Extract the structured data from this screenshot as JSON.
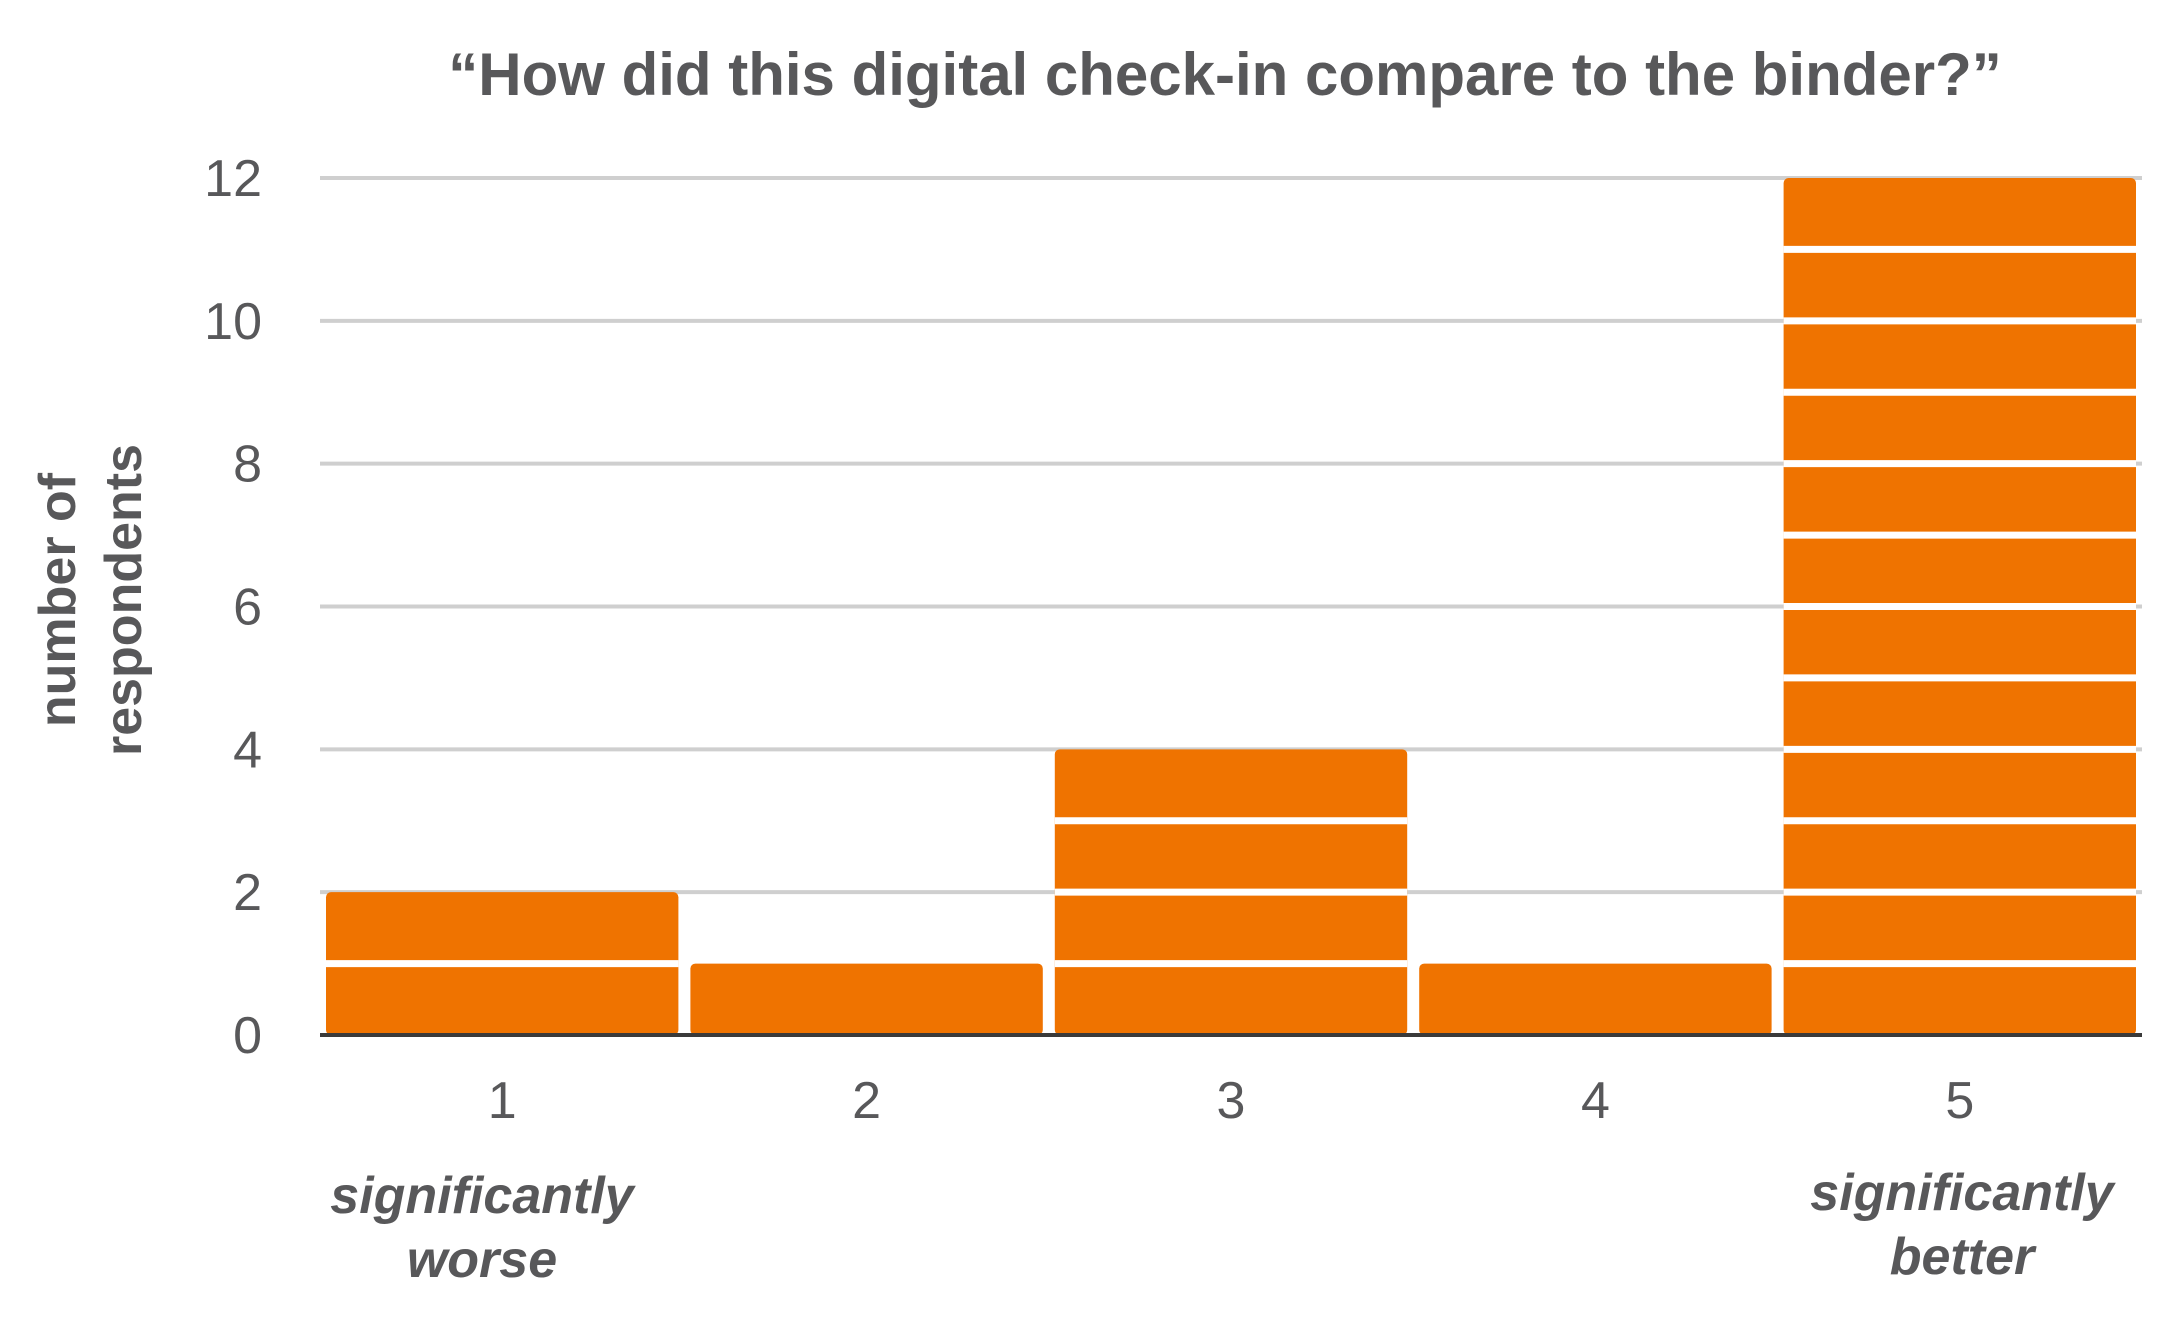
{
  "chart_data": {
    "type": "bar",
    "title": "“How did this digital check-in compare to the binder?”",
    "ylabel_lines": [
      "number of",
      "respondents"
    ],
    "xlabel": "",
    "categories": [
      "1",
      "2",
      "3",
      "4",
      "5"
    ],
    "values": [
      2,
      1,
      4,
      1,
      12
    ],
    "ylim": [
      0,
      12
    ],
    "yticks": [
      0,
      2,
      4,
      6,
      8,
      10,
      12
    ],
    "grid": true,
    "legend": "none",
    "stacked_units": true,
    "annotations": {
      "low": [
        "significantly",
        "worse"
      ],
      "high": [
        "significantly",
        "better"
      ]
    },
    "colors": {
      "bar": "#ef7300",
      "separator": "#ffffff",
      "grid": "#cfcfcf",
      "text": "#58585a"
    }
  }
}
